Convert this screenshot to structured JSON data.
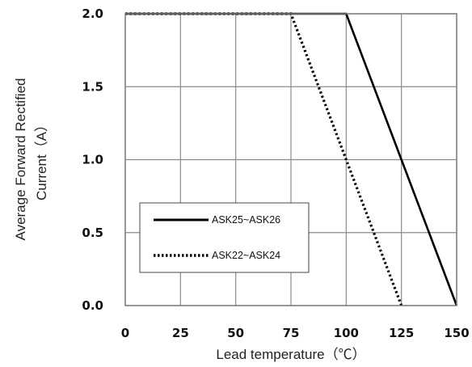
{
  "chart_data": {
    "type": "line",
    "xlabel": "Lead temperature（℃）",
    "ylabel_line1": "Average Forward Rectified",
    "ylabel_line2": "Current（A）",
    "xlim": [
      0,
      150
    ],
    "ylim": [
      0,
      2.0
    ],
    "x_ticks": [
      "0",
      "25",
      "50",
      "75",
      "100",
      "125",
      "150"
    ],
    "y_ticks": [
      "0.0",
      "0.5",
      "1.0",
      "1.5",
      "2.0"
    ],
    "grid": true,
    "legend_position": "lower-left",
    "series": [
      {
        "name": "ASK25~ASK26",
        "style": "solid",
        "color": "#000000",
        "x": [
          0,
          100,
          150
        ],
        "y": [
          2.0,
          2.0,
          0.0
        ]
      },
      {
        "name": "ASK22~ASK24",
        "style": "dotted",
        "color": "#000000",
        "x": [
          0,
          75,
          125
        ],
        "y": [
          2.0,
          2.0,
          0.0
        ]
      }
    ]
  }
}
